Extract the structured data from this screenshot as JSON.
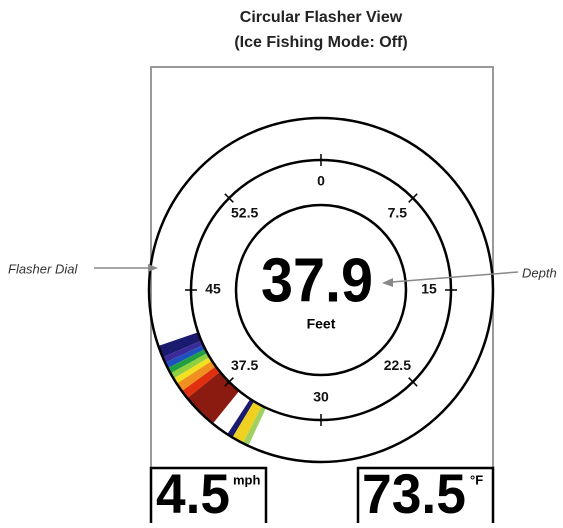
{
  "header": {
    "title_line1": "Circular Flasher View",
    "title_line2": "(Ice Fishing Mode: Off)"
  },
  "annotations": {
    "left": "Flasher Dial",
    "right": "Depth"
  },
  "dial": {
    "labels": [
      "0",
      "7.5",
      "15",
      "22.5",
      "30",
      "37.5",
      "45",
      "52.5"
    ]
  },
  "depth": {
    "value": "37.9",
    "unit": "Feet"
  },
  "speed": {
    "value": "4.5",
    "unit": "mph"
  },
  "temperature": {
    "value": "73.5",
    "unit": "°F"
  }
}
